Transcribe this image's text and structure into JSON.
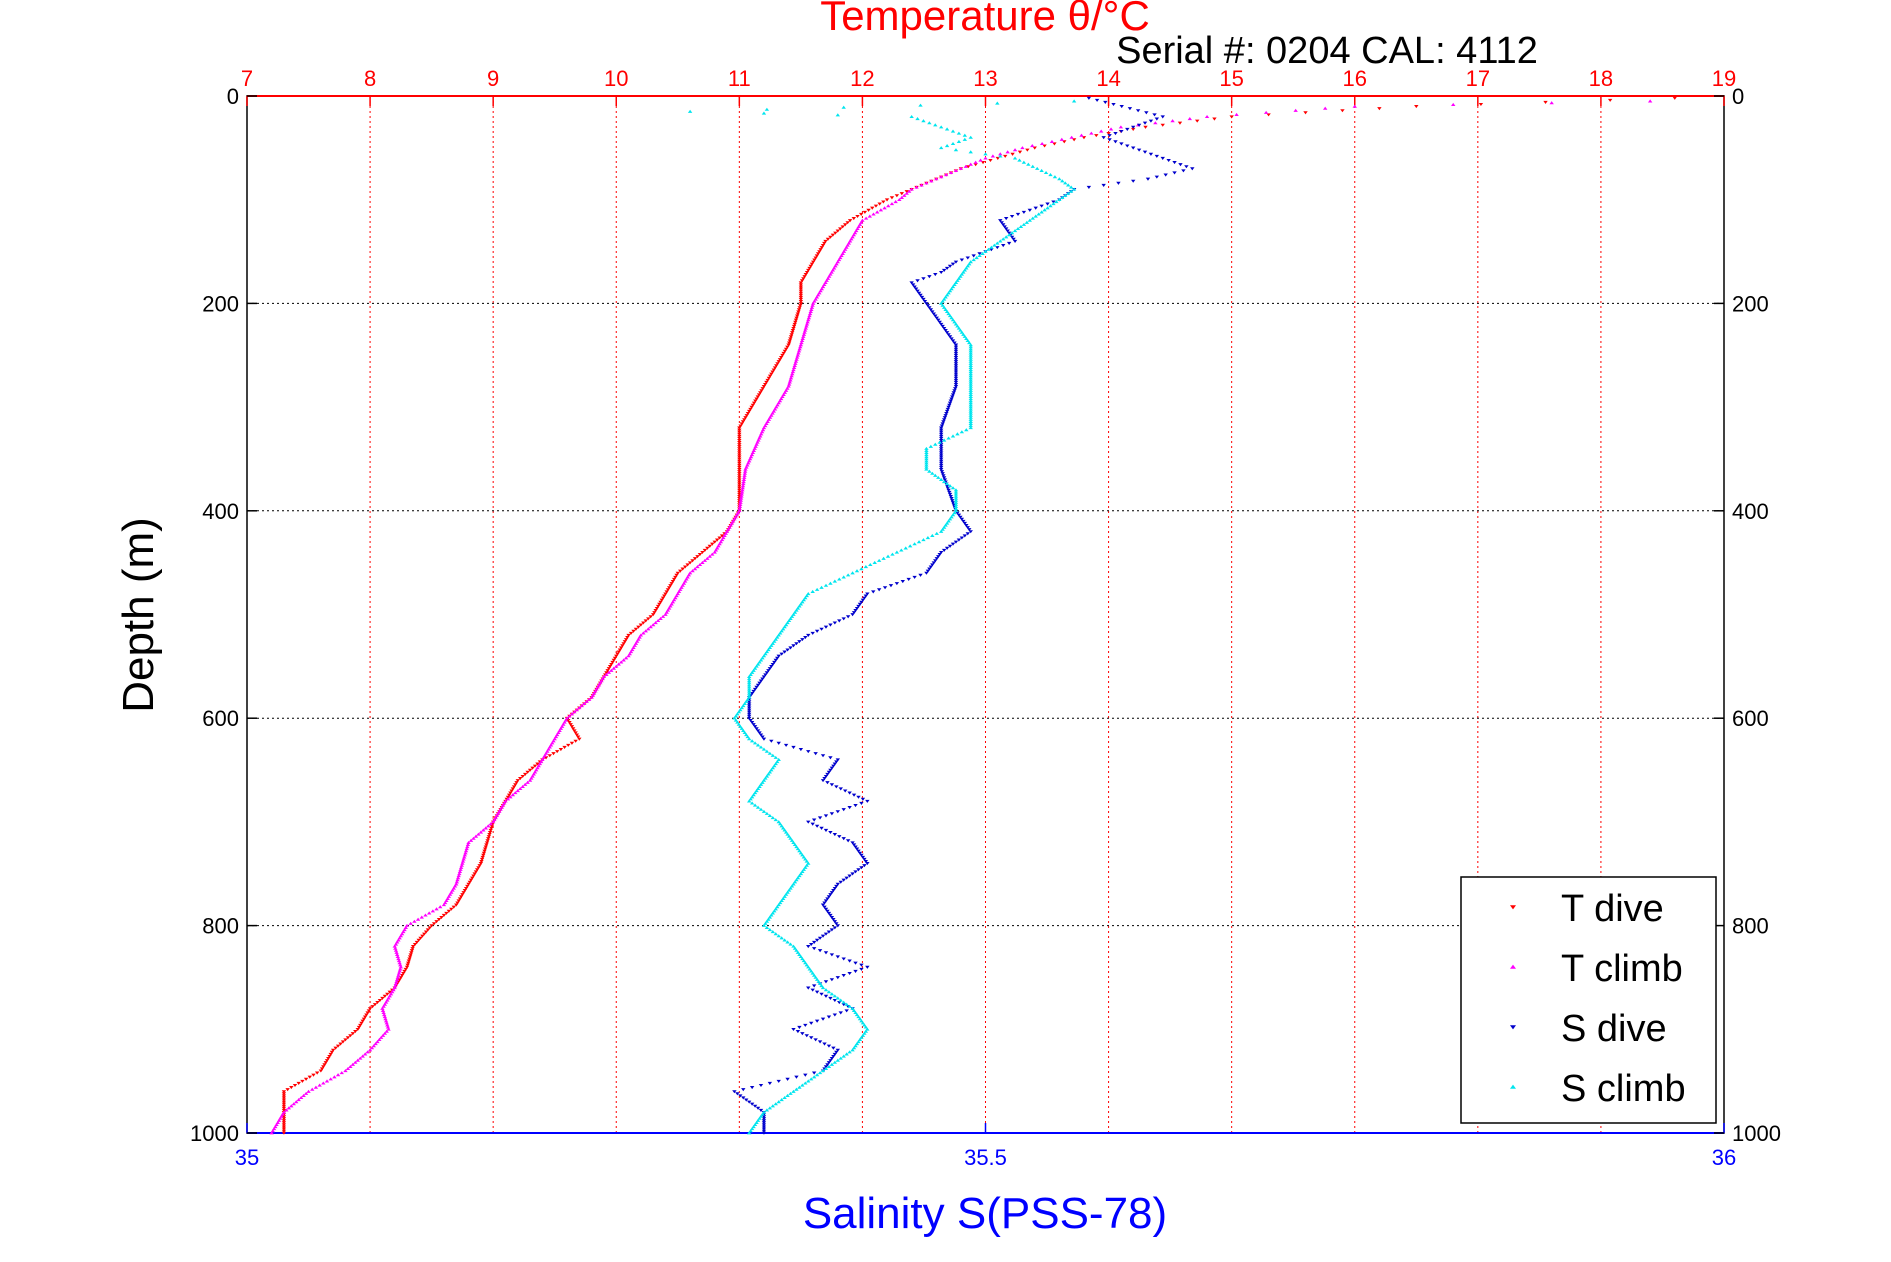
{
  "chart_data": {
    "type": "scatter",
    "title": "Temperature θ/°C",
    "annotation": "Serial #: 0204  CAL: 4112",
    "xlabel": "Salinity S(PSS-78)",
    "ylabel": "Depth (m)",
    "xlim_top": [
      7,
      19
    ],
    "xlim_bottom": [
      35,
      36
    ],
    "ylim": [
      0,
      1000
    ],
    "y_reversed": true,
    "grid": true,
    "legend_position": "bottom-right",
    "top_ticks": [
      "7",
      "8",
      "9",
      "10",
      "11",
      "12",
      "13",
      "14",
      "15",
      "16",
      "17",
      "18",
      "19"
    ],
    "bottom_ticks": [
      "35",
      "35.5",
      "36"
    ],
    "y_ticks": [
      "0",
      "200",
      "400",
      "600",
      "800",
      "1000"
    ],
    "colors": {
      "temperature_axis": "#ff0000",
      "salinity_axis": "#0000ff",
      "t_dive": "#ff0000",
      "t_climb": "#ff00ff",
      "s_dive": "#0000cc",
      "s_climb": "#00e5ee"
    },
    "series": [
      {
        "name": "T dive",
        "axis": "temperature",
        "marker": "down-triangle",
        "depth": [
          2,
          10,
          20,
          30,
          40,
          50,
          60,
          70,
          80,
          90,
          100,
          120,
          140,
          160,
          180,
          200,
          240,
          280,
          320,
          360,
          400,
          420,
          440,
          460,
          480,
          500,
          520,
          540,
          560,
          580,
          600,
          620,
          640,
          660,
          680,
          700,
          720,
          740,
          760,
          780,
          800,
          820,
          840,
          860,
          880,
          900,
          920,
          940,
          960,
          980,
          1000
        ],
        "values": [
          18.6,
          16.5,
          15.0,
          14.3,
          13.8,
          13.4,
          13.1,
          12.8,
          12.6,
          12.4,
          12.2,
          11.9,
          11.7,
          11.6,
          11.5,
          11.5,
          11.4,
          11.2,
          11.0,
          11.0,
          11.0,
          10.9,
          10.7,
          10.5,
          10.4,
          10.3,
          10.1,
          10.0,
          9.9,
          9.8,
          9.6,
          9.7,
          9.4,
          9.2,
          9.1,
          9.0,
          8.95,
          8.9,
          8.8,
          8.7,
          8.5,
          8.35,
          8.3,
          8.2,
          8.0,
          7.9,
          7.7,
          7.6,
          7.3,
          7.3,
          7.3
        ]
      },
      {
        "name": "T climb",
        "axis": "temperature",
        "marker": "up-triangle",
        "depth": [
          5,
          10,
          20,
          30,
          40,
          50,
          60,
          70,
          80,
          90,
          100,
          120,
          140,
          160,
          180,
          200,
          240,
          280,
          320,
          360,
          400,
          420,
          440,
          460,
          480,
          500,
          520,
          540,
          560,
          580,
          600,
          620,
          640,
          660,
          680,
          700,
          720,
          740,
          760,
          780,
          800,
          820,
          840,
          860,
          880,
          900,
          920,
          940,
          960,
          980,
          1000
        ],
        "values": [
          18.4,
          16.0,
          14.8,
          14.1,
          13.7,
          13.3,
          13.0,
          12.8,
          12.6,
          12.4,
          12.3,
          12.0,
          11.9,
          11.8,
          11.7,
          11.6,
          11.5,
          11.4,
          11.2,
          11.05,
          11.0,
          10.9,
          10.8,
          10.6,
          10.5,
          10.4,
          10.2,
          10.1,
          9.9,
          9.8,
          9.6,
          9.5,
          9.4,
          9.3,
          9.1,
          9.0,
          8.8,
          8.75,
          8.7,
          8.6,
          8.3,
          8.2,
          8.25,
          8.2,
          8.1,
          8.15,
          8.0,
          7.8,
          7.5,
          7.3,
          7.2
        ]
      },
      {
        "name": "S dive",
        "axis": "salinity",
        "marker": "down-triangle",
        "depth": [
          2,
          20,
          40,
          60,
          70,
          80,
          90,
          100,
          120,
          140,
          160,
          170,
          180,
          200,
          240,
          280,
          320,
          360,
          400,
          420,
          440,
          460,
          480,
          500,
          520,
          540,
          560,
          580,
          600,
          620,
          640,
          660,
          680,
          700,
          720,
          740,
          760,
          780,
          800,
          820,
          840,
          860,
          880,
          900,
          920,
          940,
          960,
          980,
          1000
        ],
        "values": [
          35.57,
          35.62,
          35.58,
          35.62,
          35.64,
          35.61,
          35.56,
          35.55,
          35.51,
          35.52,
          35.48,
          35.47,
          35.45,
          35.46,
          35.48,
          35.48,
          35.47,
          35.47,
          35.48,
          35.49,
          35.47,
          35.46,
          35.42,
          35.41,
          35.38,
          35.36,
          35.35,
          35.34,
          35.34,
          35.35,
          35.4,
          35.39,
          35.42,
          35.38,
          35.41,
          35.42,
          35.4,
          35.39,
          35.4,
          35.38,
          35.42,
          35.38,
          35.41,
          35.37,
          35.4,
          35.39,
          35.33,
          35.35,
          35.35
        ]
      },
      {
        "name": "S climb",
        "axis": "salinity",
        "marker": "up-triangle",
        "depth": [
          5,
          15,
          20,
          30,
          40,
          50,
          60,
          80,
          90,
          100,
          120,
          140,
          160,
          180,
          200,
          240,
          280,
          320,
          340,
          360,
          380,
          400,
          420,
          440,
          460,
          480,
          500,
          520,
          540,
          560,
          580,
          600,
          620,
          640,
          660,
          680,
          700,
          720,
          740,
          760,
          780,
          800,
          820,
          840,
          860,
          880,
          900,
          920,
          940,
          960,
          980,
          1000
        ],
        "values": [
          35.56,
          35.3,
          35.45,
          35.47,
          35.49,
          35.47,
          35.52,
          35.55,
          35.56,
          35.55,
          35.53,
          35.51,
          35.49,
          35.48,
          35.47,
          35.49,
          35.49,
          35.49,
          35.46,
          35.46,
          35.48,
          35.48,
          35.47,
          35.44,
          35.41,
          35.38,
          35.37,
          35.36,
          35.35,
          35.34,
          35.34,
          35.33,
          35.34,
          35.36,
          35.35,
          35.34,
          35.36,
          35.37,
          35.38,
          35.37,
          35.36,
          35.35,
          35.37,
          35.38,
          35.39,
          35.41,
          35.42,
          35.41,
          35.39,
          35.37,
          35.35,
          35.34
        ]
      }
    ]
  }
}
